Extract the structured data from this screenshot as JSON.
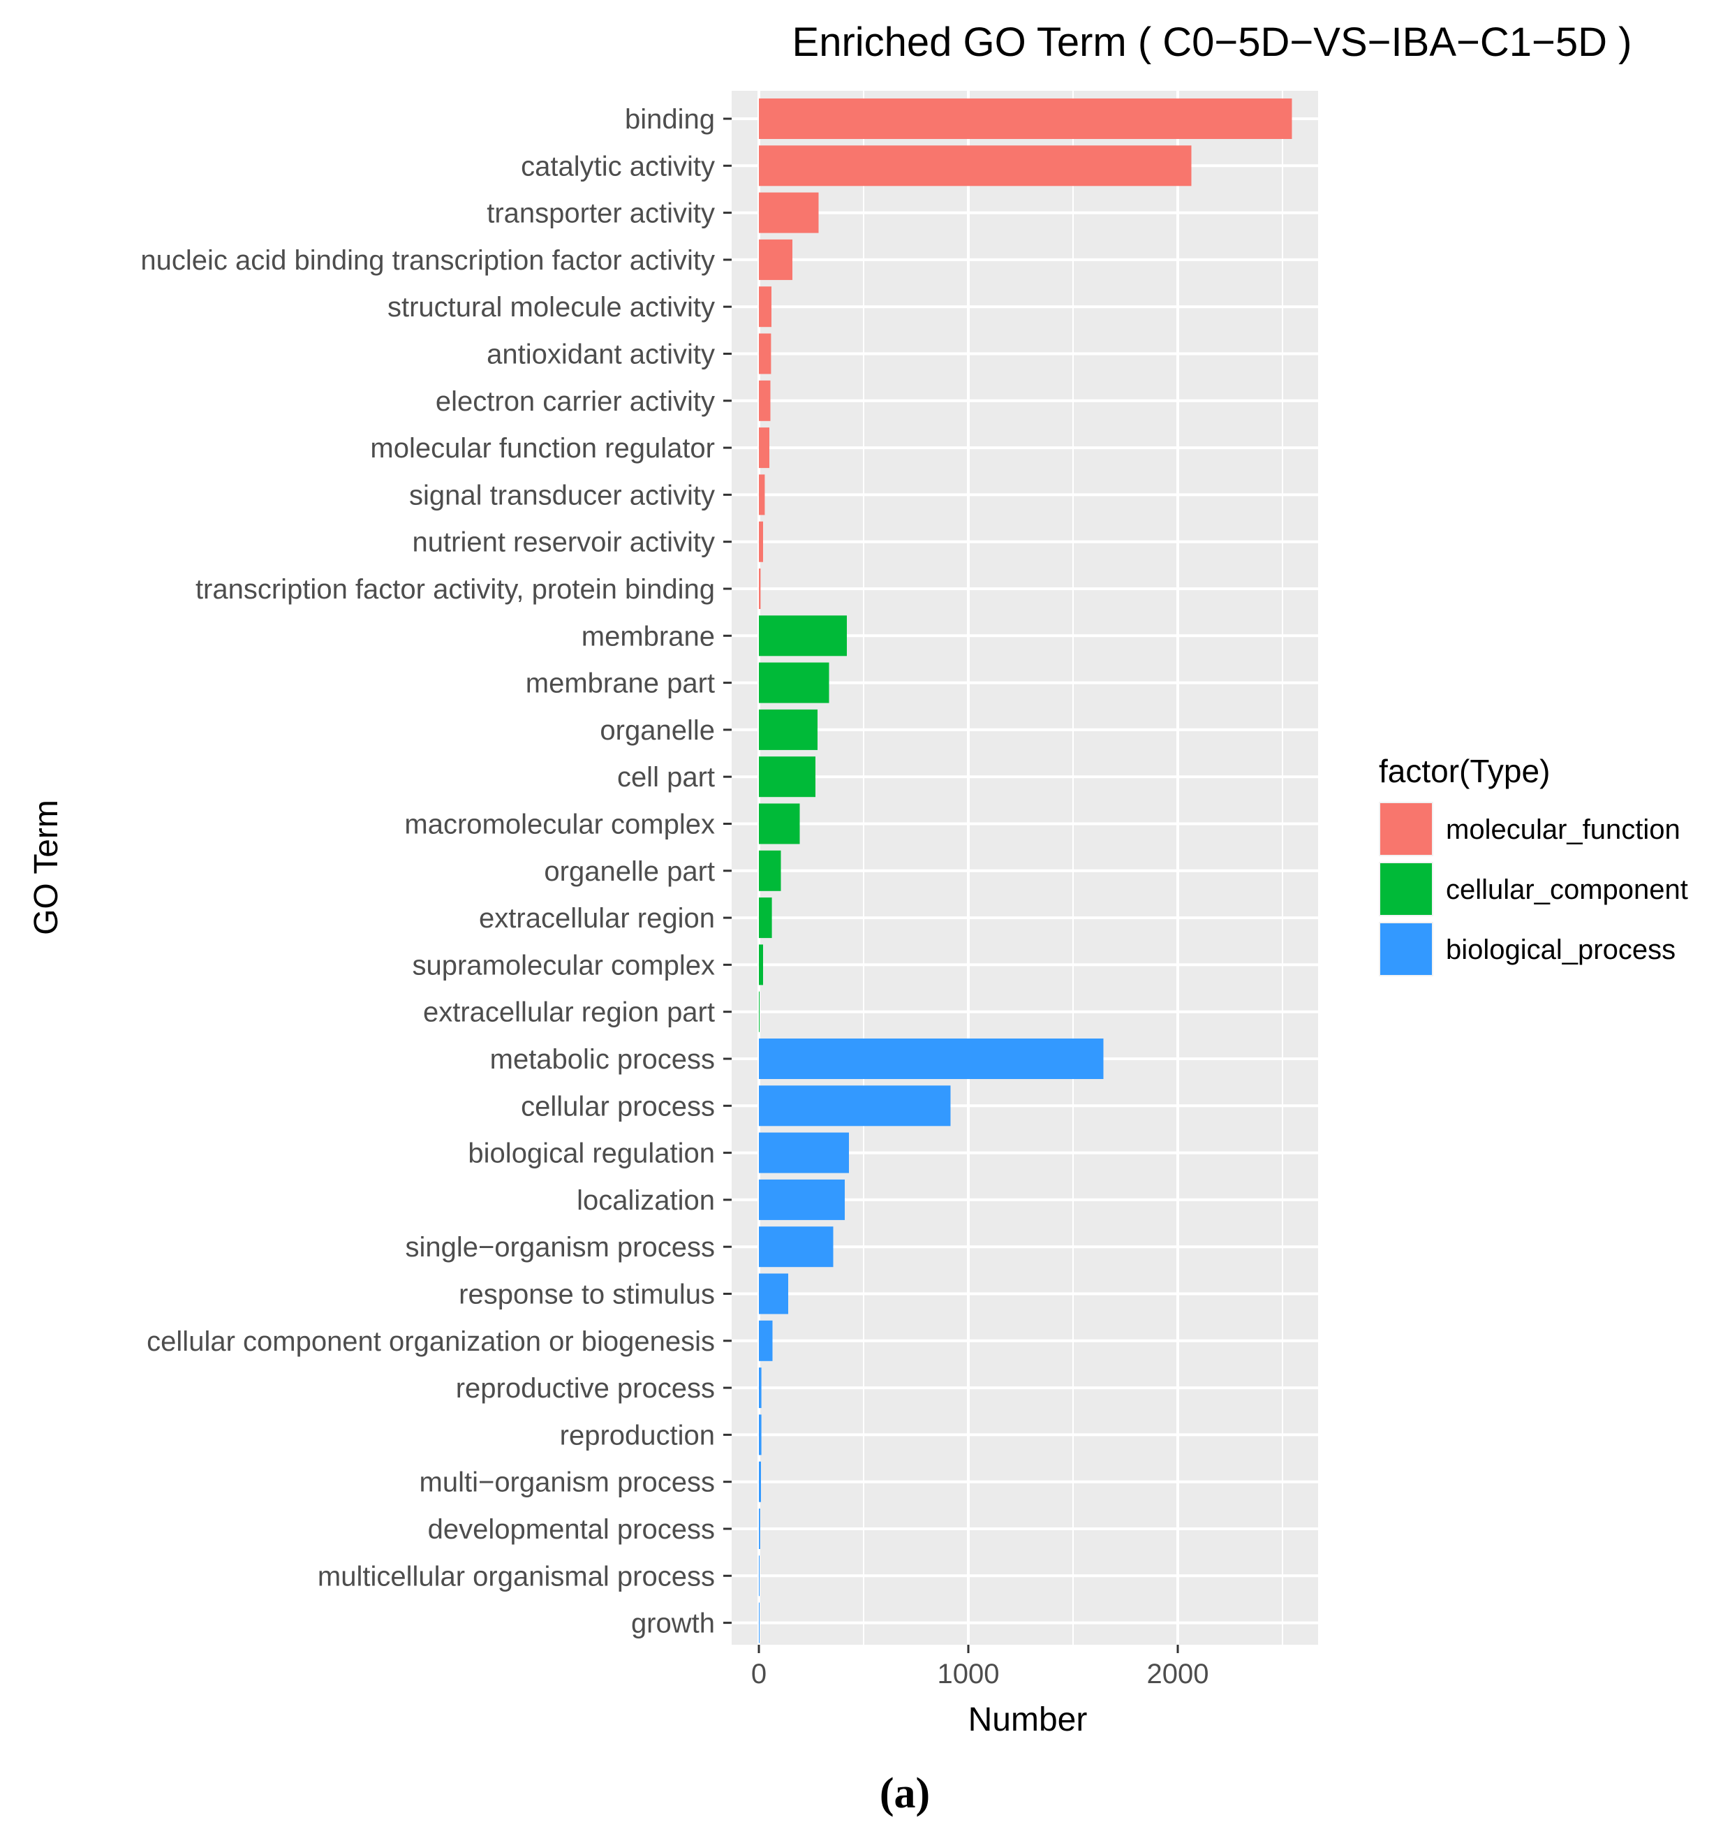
{
  "chart_data": {
    "type": "bar",
    "orientation": "horizontal",
    "title": "Enriched GO Term ( C0−5D−VS−IBA−C1−5D )",
    "xlabel": "Number",
    "ylabel": "GO Term",
    "xlim": [
      -130,
      2670
    ],
    "x_ticks": [
      0,
      1000,
      2000
    ],
    "x_minor_ticks": [
      500,
      1500,
      2500
    ],
    "grid": true,
    "legend": {
      "title": "factor(Type)",
      "position": "right",
      "entries": [
        {
          "key": "molecular_function",
          "label": "molecular_function",
          "color": "#F8766D"
        },
        {
          "key": "cellular_component",
          "label": "cellular_component",
          "color": "#00BA38"
        },
        {
          "key": "biological_process",
          "label": "biological_process",
          "color": "#3399FF"
        }
      ]
    },
    "categories": [
      "binding",
      "catalytic activity",
      "transporter activity",
      "nucleic acid binding transcription factor activity",
      "structural molecule activity",
      "antioxidant activity",
      "electron carrier activity",
      "molecular function regulator",
      "signal transducer activity",
      "nutrient reservoir activity",
      "transcription factor activity, protein binding",
      "membrane",
      "membrane part",
      "organelle",
      "cell part",
      "macromolecular complex",
      "organelle part",
      "extracellular region",
      "supramolecular complex",
      "extracellular region part",
      "metabolic process",
      "cellular process",
      "biological regulation",
      "localization",
      "single−organism process",
      "response to stimulus",
      "cellular component organization or biogenesis",
      "reproductive process",
      "reproduction",
      "multi−organism process",
      "developmental process",
      "multicellular organismal process",
      "growth"
    ],
    "values": [
      2545,
      2065,
      285,
      160,
      60,
      58,
      55,
      50,
      28,
      20,
      8,
      420,
      335,
      280,
      270,
      195,
      105,
      62,
      20,
      3,
      1645,
      915,
      430,
      410,
      355,
      140,
      65,
      12,
      12,
      10,
      6,
      3,
      2
    ],
    "types": [
      "molecular_function",
      "molecular_function",
      "molecular_function",
      "molecular_function",
      "molecular_function",
      "molecular_function",
      "molecular_function",
      "molecular_function",
      "molecular_function",
      "molecular_function",
      "molecular_function",
      "cellular_component",
      "cellular_component",
      "cellular_component",
      "cellular_component",
      "cellular_component",
      "cellular_component",
      "cellular_component",
      "cellular_component",
      "cellular_component",
      "biological_process",
      "biological_process",
      "biological_process",
      "biological_process",
      "biological_process",
      "biological_process",
      "biological_process",
      "biological_process",
      "biological_process",
      "biological_process",
      "biological_process",
      "biological_process",
      "biological_process"
    ]
  },
  "caption": "(a)",
  "colors": {
    "panel_background": "#EBEBEB",
    "grid_line": "#FFFFFF",
    "axis_text": "#4D4D4D",
    "title_text": "#000000"
  }
}
